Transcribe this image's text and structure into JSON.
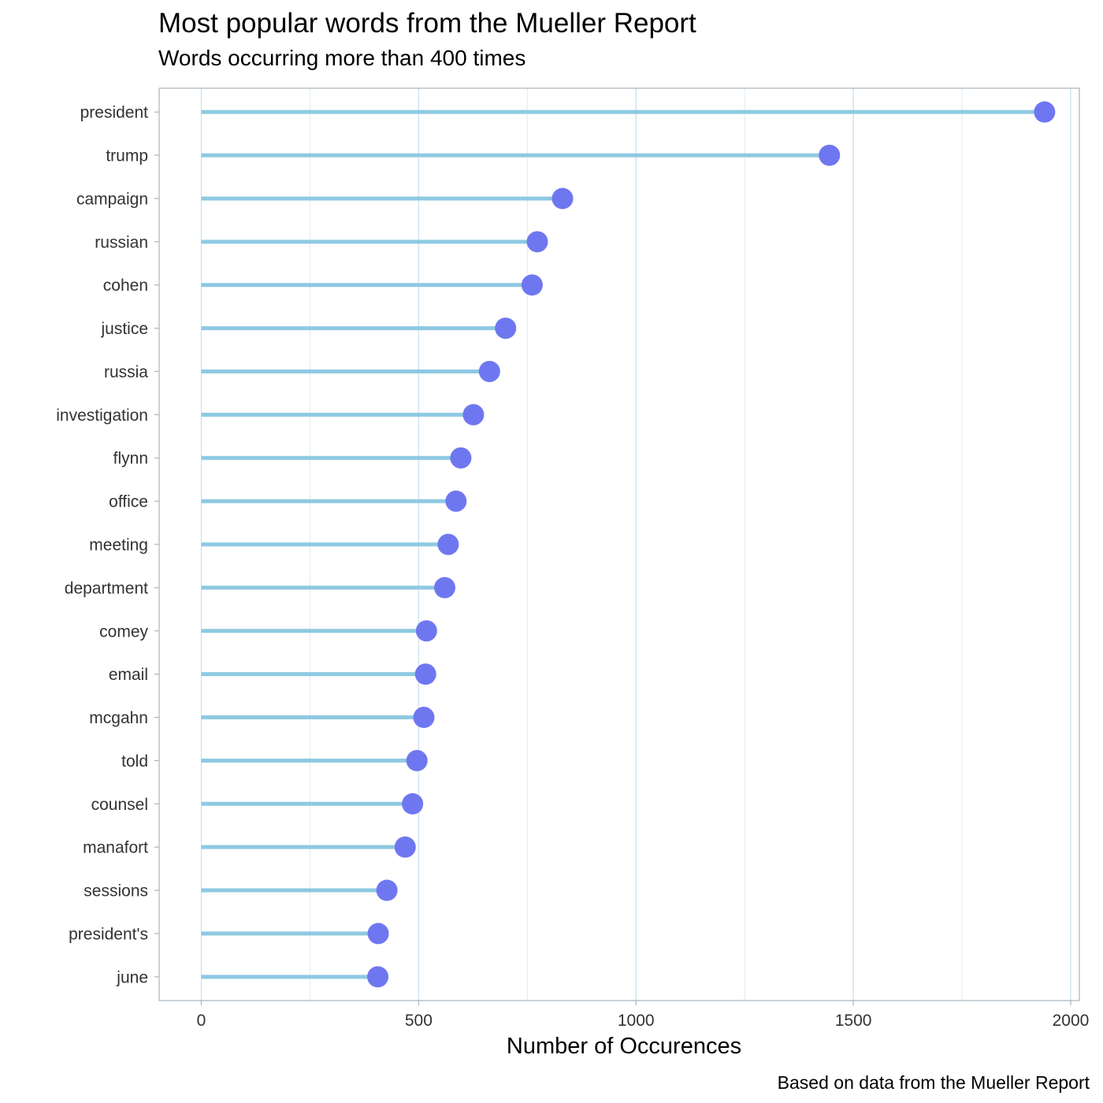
{
  "chart_data": {
    "type": "lollipop",
    "orientation": "horizontal",
    "title": "Most popular words from the Mueller Report",
    "subtitle": "Words occurring more than 400 times",
    "xlabel": "Number of Occurences",
    "ylabel": "",
    "caption": "Based on data from the Mueller Report",
    "xlim": [
      -97,
      2020
    ],
    "xticks": [
      0,
      500,
      1000,
      1500,
      2000
    ],
    "xtick_labels": [
      "0",
      "500",
      "1000",
      "1500",
      "2000"
    ],
    "minor_gridlines": [
      250,
      750,
      1250,
      1750
    ],
    "grid": true,
    "legend": "none",
    "categories": [
      "president",
      "trump",
      "campaign",
      "russian",
      "cohen",
      "justice",
      "russia",
      "investigation",
      "flynn",
      "office",
      "meeting",
      "department",
      "comey",
      "email",
      "mcgahn",
      "told",
      "counsel",
      "manafort",
      "sessions",
      "president's",
      "june"
    ],
    "values": [
      1940,
      1445,
      831,
      773,
      761,
      700,
      663,
      626,
      597,
      586,
      568,
      560,
      518,
      516,
      512,
      496,
      486,
      469,
      427,
      407,
      406
    ],
    "colors": {
      "stem": "#8ec9e2",
      "point": "#6f77f0",
      "major_grid": "#cfe2ee",
      "minor_grid": "#e3eef5",
      "panel_border": "#a7b3bd",
      "axis_text": "#333333"
    }
  }
}
